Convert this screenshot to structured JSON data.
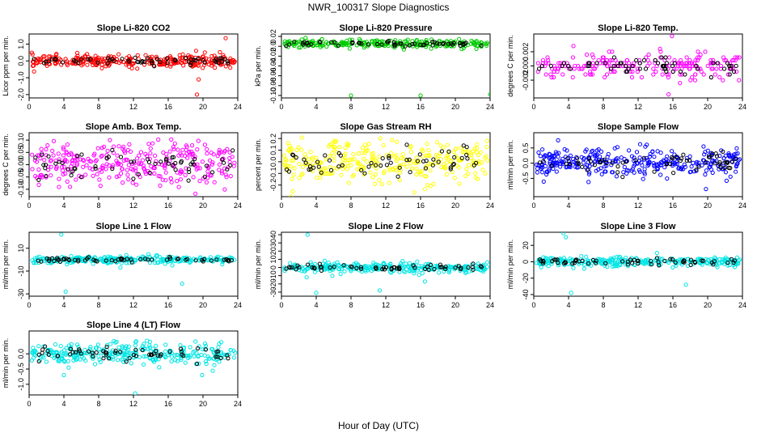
{
  "figure": {
    "title": "NWR_100317  Slope Diagnostics",
    "xlabel": "Hour of Day (UTC)"
  },
  "chart_data": [
    {
      "type": "scatter",
      "title": "Slope Li-820 CO2",
      "ylabel": "Licor ppm per min.",
      "xlim": [
        0,
        24
      ],
      "ylim": [
        -2.2,
        1.6
      ],
      "xticks": [
        0,
        4,
        8,
        12,
        16,
        20,
        24
      ],
      "yticks": [
        -2.0,
        -1.0,
        0.0,
        1.0
      ],
      "ytick_labels": [
        "-2.0",
        "-1.0",
        "0.0",
        "1.0"
      ],
      "color": "#ff0000",
      "density": 300,
      "core_sd": 0.18,
      "outliers": [
        [
          19.2,
          0.6
        ],
        [
          19.5,
          -1.1
        ],
        [
          22.6,
          1.35
        ],
        [
          19.3,
          -2.0
        ]
      ]
    },
    {
      "type": "scatter",
      "title": "Slope Li-820 Pressure",
      "ylabel": "kPa per min.",
      "xlim": [
        0,
        24
      ],
      "ylim": [
        -0.105,
        0.025
      ],
      "xticks": [
        0,
        4,
        8,
        12,
        16,
        20,
        24
      ],
      "yticks": [
        -0.1,
        -0.08,
        -0.06,
        -0.04,
        -0.02,
        0.0,
        0.02
      ],
      "ytick_labels": [
        "-0.10",
        "-0.08",
        "-0.06",
        "-0.04",
        "-0.02",
        "0.0",
        "0.02"
      ],
      "color": "#00cc00",
      "density": 260,
      "core_sd": 0.004,
      "core_center": 0.005,
      "outliers": [
        [
          8.0,
          -0.1
        ],
        [
          16.0,
          -0.1
        ],
        [
          24.0,
          -0.098
        ]
      ]
    },
    {
      "type": "scatter",
      "title": "Slope Li-820 Temp.",
      "ylabel": "degrees C per min.",
      "xlim": [
        0,
        24
      ],
      "ylim": [
        -0.0045,
        0.0045
      ],
      "xticks": [
        0,
        4,
        8,
        12,
        16,
        20,
        24
      ],
      "yticks": [
        -0.002,
        0.0,
        0.002
      ],
      "ytick_labels": [
        "-0.002",
        "0.000",
        "0.002"
      ],
      "color": "#ff00ff",
      "density": 220,
      "core_sd": 0.0009,
      "quantized": 0.0004,
      "outliers": [
        [
          15.9,
          0.0042
        ],
        [
          15.5,
          -0.004
        ]
      ]
    },
    {
      "type": "scatter",
      "title": "Slope Amb. Box Temp.",
      "ylabel": "degrees C per min.",
      "xlim": [
        0,
        24
      ],
      "ylim": [
        -0.13,
        0.13
      ],
      "xticks": [
        0,
        4,
        8,
        12,
        16,
        20,
        24
      ],
      "yticks": [
        -0.1,
        -0.05,
        0.0,
        0.05,
        0.1
      ],
      "ytick_labels": [
        "-0.10",
        "-0.05",
        "0.00",
        "0.05",
        "0.10"
      ],
      "color": "#ff00ff",
      "density": 300,
      "core_sd": 0.045,
      "outliers": []
    },
    {
      "type": "scatter",
      "title": "Slope Gas Stream RH",
      "ylabel": "percent per min.",
      "xlim": [
        0,
        24
      ],
      "ylim": [
        -0.3,
        0.25
      ],
      "xticks": [
        0,
        4,
        8,
        12,
        16,
        20,
        24
      ],
      "yticks": [
        -0.2,
        -0.1,
        0.0,
        0.1,
        0.2
      ],
      "ytick_labels": [
        "-0.2",
        "-0.1",
        "0.0",
        "0.1",
        "0.2"
      ],
      "color": "#ffff00",
      "density": 300,
      "core_sd": 0.09,
      "outliers": []
    },
    {
      "type": "scatter",
      "title": "Slope Sample Flow",
      "ylabel": "ml/min per min.",
      "xlim": [
        0,
        24
      ],
      "ylim": [
        -1.1,
        1.0
      ],
      "xticks": [
        0,
        4,
        8,
        12,
        16,
        20,
        24
      ],
      "yticks": [
        -0.5,
        0.0,
        0.5
      ],
      "ytick_labels": [
        "-0.5",
        "0.0",
        "0.5"
      ],
      "color": "#0000ff",
      "density": 320,
      "core_sd": 0.25,
      "outliers": [
        [
          2.8,
          0.75
        ],
        [
          19.8,
          -0.85
        ]
      ]
    },
    {
      "type": "scatter",
      "title": "Slope Line 1 Flow",
      "ylabel": "ml/min per min.",
      "xlim": [
        0,
        24
      ],
      "ylim": [
        -32,
        24
      ],
      "xticks": [
        0,
        4,
        8,
        12,
        16,
        20,
        24
      ],
      "yticks": [
        -30,
        -10,
        10
      ],
      "ytick_labels": [
        "-30",
        "-10",
        "10"
      ],
      "color": "#00e5e5",
      "density": 280,
      "core_sd": 1.5,
      "outliers": [
        [
          3.7,
          22
        ],
        [
          4.2,
          -28
        ],
        [
          17.6,
          -21
        ],
        [
          10.5,
          -7
        ]
      ]
    },
    {
      "type": "scatter",
      "title": "Slope Line 2 Flow",
      "ylabel": "ml/min per min.",
      "xlim": [
        0,
        24
      ],
      "ylim": [
        -35,
        43
      ],
      "xticks": [
        0,
        4,
        8,
        12,
        16,
        20,
        24
      ],
      "yticks": [
        -30,
        -20,
        -10,
        0,
        10,
        20,
        30,
        40
      ],
      "ytick_labels": [
        "-30",
        "-20",
        "-10",
        "0",
        "10",
        "20",
        "30",
        "40"
      ],
      "color": "#00e5e5",
      "density": 280,
      "core_sd": 3,
      "outliers": [
        [
          3.0,
          40
        ],
        [
          4.0,
          -31
        ],
        [
          2.9,
          -12
        ],
        [
          11.3,
          -28
        ],
        [
          16.5,
          -17
        ]
      ]
    },
    {
      "type": "scatter",
      "title": "Slope Line 3 Flow",
      "ylabel": "ml/min per min.",
      "xlim": [
        0,
        24
      ],
      "ylim": [
        -42,
        36
      ],
      "xticks": [
        0,
        4,
        8,
        12,
        16,
        20,
        24
      ],
      "yticks": [
        -40,
        -20,
        0,
        20
      ],
      "ytick_labels": [
        "-40",
        "-20",
        "0",
        "20"
      ],
      "color": "#00e5e5",
      "density": 280,
      "core_sd": 3,
      "outliers": [
        [
          3.4,
          35
        ],
        [
          3.7,
          30
        ],
        [
          4.3,
          -38
        ],
        [
          17.5,
          -28
        ]
      ]
    },
    {
      "type": "scatter",
      "title": "Slope Line 4 (LT) Flow",
      "ylabel": "ml/min per min.",
      "xlim": [
        0,
        24
      ],
      "ylim": [
        -1.35,
        0.75
      ],
      "xticks": [
        0,
        4,
        8,
        12,
        16,
        20,
        24
      ],
      "yticks": [
        -1.0,
        -0.5,
        0.0
      ],
      "ytick_labels": [
        "-1.0",
        "-0.5",
        "0.0"
      ],
      "color": "#00e5e5",
      "density": 300,
      "core_sd": 0.18,
      "outliers": [
        [
          12.2,
          -1.3
        ],
        [
          4.0,
          -0.7
        ],
        [
          19.9,
          -0.7
        ]
      ]
    }
  ]
}
